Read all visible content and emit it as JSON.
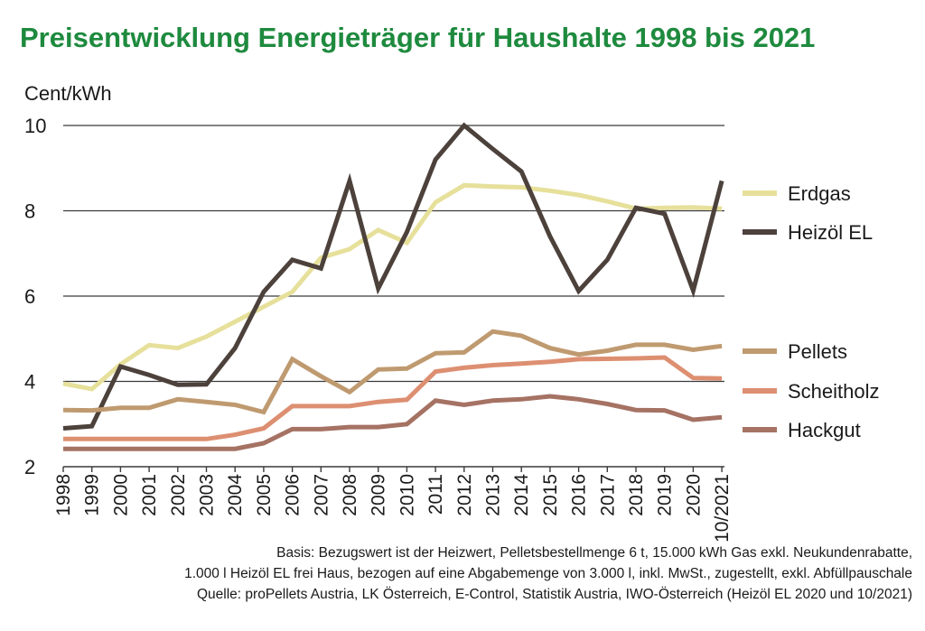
{
  "chart_data": {
    "type": "line",
    "title": "Preisentwicklung Energieträger für Haushalte 1998 bis 2021",
    "ylabel": "Cent/kWh",
    "xlabel": "",
    "ylim": [
      2,
      10
    ],
    "yticks": [
      2,
      4,
      6,
      8,
      10
    ],
    "grid": true,
    "legend": "right",
    "categories": [
      "1998",
      "1999",
      "2000",
      "2001",
      "2002",
      "2003",
      "2004",
      "2005",
      "2006",
      "2007",
      "2008",
      "2009",
      "2010",
      "2011",
      "2012",
      "2013",
      "2014",
      "2015",
      "2016",
      "2017",
      "2018",
      "2019",
      "2020",
      "10/2021"
    ],
    "series": [
      {
        "name": "Erdgas",
        "color": "#e6e09b",
        "values": [
          3.95,
          3.82,
          4.4,
          4.85,
          4.78,
          5.05,
          5.4,
          5.75,
          6.1,
          6.9,
          7.1,
          7.55,
          7.25,
          8.2,
          8.6,
          8.57,
          8.55,
          8.47,
          8.37,
          8.22,
          8.05,
          8.07,
          8.08,
          8.05
        ]
      },
      {
        "name": "Heizöl EL",
        "color": "#4c413b",
        "values": [
          2.9,
          2.95,
          4.35,
          4.15,
          3.92,
          3.93,
          4.78,
          6.1,
          6.85,
          6.65,
          8.7,
          6.18,
          7.5,
          9.2,
          10.0,
          9.45,
          8.92,
          7.4,
          6.12,
          6.85,
          8.07,
          7.93,
          6.13,
          8.7
        ]
      },
      {
        "name": "Pellets",
        "color": "#bf9a70",
        "values": [
          3.33,
          3.32,
          3.38,
          3.38,
          3.58,
          3.52,
          3.45,
          3.28,
          4.52,
          4.12,
          3.75,
          4.28,
          4.3,
          4.66,
          4.68,
          5.17,
          5.07,
          4.78,
          4.63,
          4.72,
          4.86,
          4.86,
          4.74,
          4.83
        ]
      },
      {
        "name": "Scheitholz",
        "color": "#dd8f71",
        "values": [
          2.65,
          2.65,
          2.65,
          2.65,
          2.65,
          2.65,
          2.75,
          2.9,
          3.42,
          3.42,
          3.42,
          3.52,
          3.57,
          4.23,
          4.32,
          4.38,
          4.42,
          4.46,
          4.52,
          4.53,
          4.54,
          4.56,
          4.08,
          4.07
        ]
      },
      {
        "name": "Hackgut",
        "color": "#a57263",
        "values": [
          2.42,
          2.42,
          2.42,
          2.42,
          2.42,
          2.42,
          2.42,
          2.55,
          2.88,
          2.88,
          2.93,
          2.93,
          3.0,
          3.55,
          3.45,
          3.55,
          3.58,
          3.65,
          3.58,
          3.47,
          3.33,
          3.32,
          3.1,
          3.16
        ]
      }
    ]
  },
  "notes": [
    "Basis: Bezugswert ist der Heizwert, Pelletsbestellmenge 6 t, 15.000 kWh Gas exkl. Neukundenrabatte,",
    "1.000 l Heizöl EL frei Haus, bezogen auf eine Abgabemenge von 3.000 l, inkl. MwSt., zugestellt, exkl. Abfüllpauschale",
    "Quelle: proPellets Austria, LK Österreich, E-Control, Statistik Austria, IWO-Österreich (Heizöl EL 2020 und 10/2021)"
  ]
}
